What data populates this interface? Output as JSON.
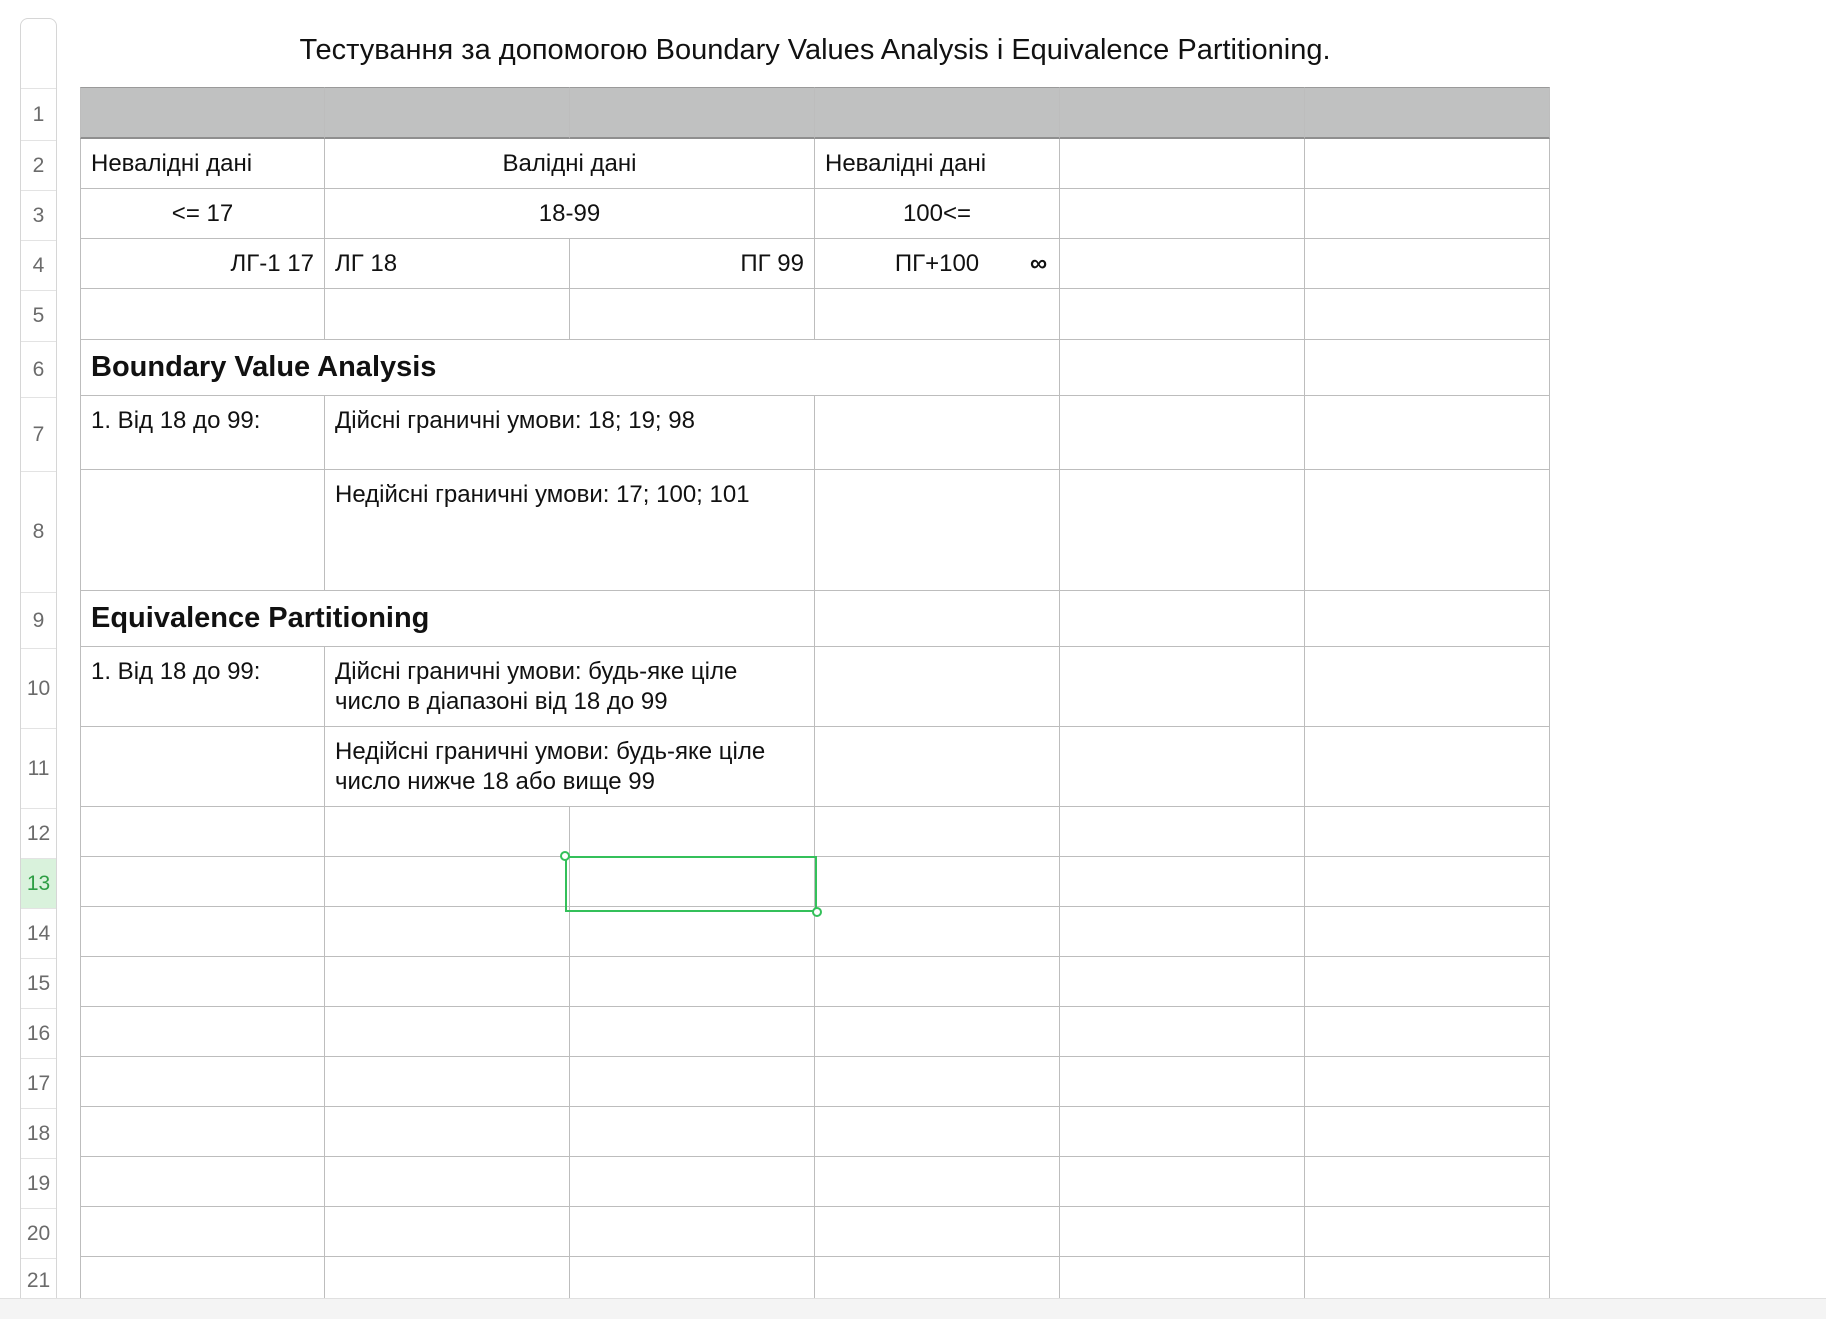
{
  "sheet": {
    "title": "Тестування за допомогою Boundary Values Analysis і Equivalence Partitioning."
  },
  "row_numbers": [
    "1",
    "2",
    "3",
    "4",
    "5",
    "6",
    "7",
    "8",
    "9",
    "10",
    "11",
    "12",
    "13",
    "14",
    "15",
    "16",
    "17",
    "18",
    "19",
    "20",
    "21"
  ],
  "active_row": "13",
  "cells": {
    "r2_invalid_low": "Невалідні дані",
    "r2_valid": "Валідні дані",
    "r2_invalid_high": "Невалідні дані",
    "r3_low": "<= 17",
    "r3_valid": "18-99",
    "r3_high": "100<=",
    "r4_lg_minus_1": "ЛГ-1  17",
    "r4_lg": "ЛГ  18",
    "r4_pg": "ПГ 99",
    "r4_pg_plus": "ПГ+100",
    "r4_infinity": "∞",
    "r6_heading": "Boundary Value Analysis",
    "r7_range": "1.  Від 18 до 99:",
    "r7_valid": "Дійсні граничні умови: 18; 19;  98",
    "r8_invalid": "Недійсні граничні умови: 17; 100; 101",
    "r9_heading": "Equivalence Partitioning",
    "r10_range": "1.  Від 18 до 99:",
    "r10_valid": "Дійсні граничні умови: будь-яке ціле число в діапазоні від 18 до 99",
    "r11_invalid": "Недійсні граничні умови: будь-яке ціле число нижче 18 або вище 99"
  },
  "colors": {
    "header_fill": "#c0c1c1",
    "selection": "#34c05a",
    "active_row_fill": "#d9f2dc"
  }
}
